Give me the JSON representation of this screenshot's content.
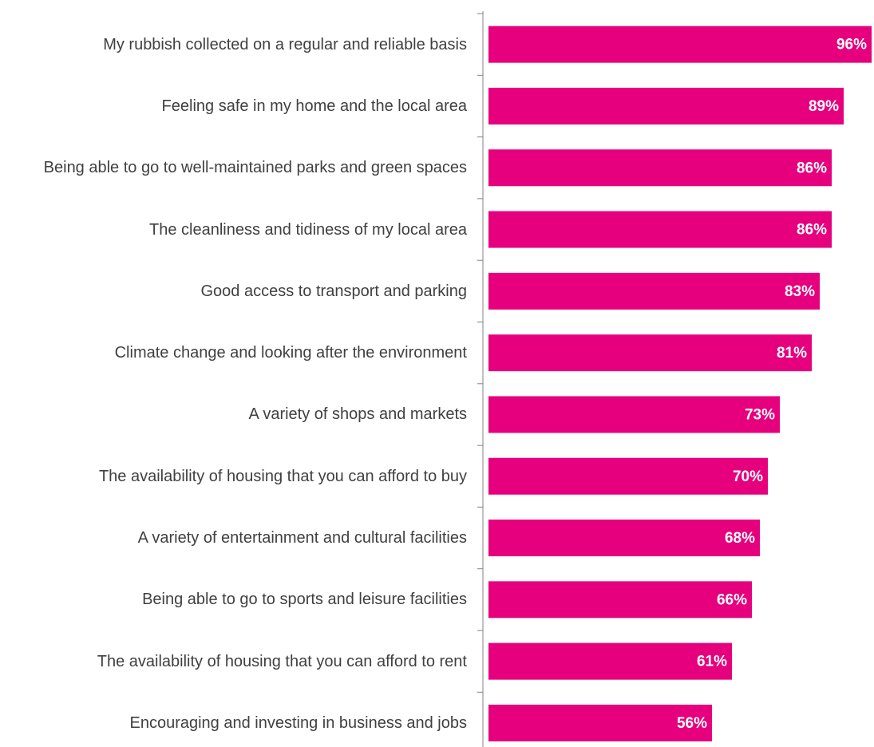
{
  "chart_data": {
    "type": "barh",
    "categories": [
      "My rubbish collected on a regular and reliable basis",
      "Feeling safe in my home and the local area",
      "Being able to go to well-maintained parks and green spaces",
      "The cleanliness and tidiness of my local area",
      "Good access to transport and parking",
      "Climate change and looking after the environment",
      "A variety of shops and markets",
      "The availability of housing that you can afford to buy",
      "A variety of entertainment and cultural facilities",
      "Being able to go to sports and leisure facilities",
      "The availability of housing that you can afford to rent",
      "Encouraging and investing in business and jobs"
    ],
    "values": [
      96,
      89,
      86,
      86,
      83,
      81,
      73,
      70,
      68,
      66,
      61,
      56
    ],
    "value_labels": [
      "96%",
      "89%",
      "86%",
      "86%",
      "83%",
      "81%",
      "73%",
      "70%",
      "68%",
      "66%",
      "61%",
      "56%"
    ],
    "color": "#e6007e"
  }
}
